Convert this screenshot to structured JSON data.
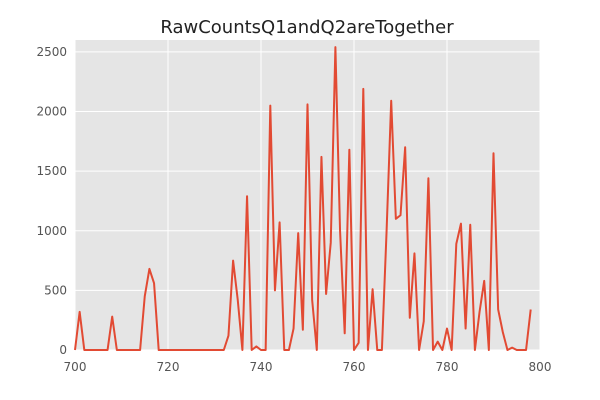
{
  "chart_data": {
    "type": "line",
    "title": "RawCountsQ1andQ2areTogether",
    "xlabel": "",
    "ylabel": "",
    "xlim": [
      700,
      800
    ],
    "ylim": [
      0,
      2600
    ],
    "x_ticks": [
      "700",
      "720",
      "740",
      "760",
      "780",
      "800"
    ],
    "y_ticks": [
      "0",
      "500",
      "1000",
      "1500",
      "2000",
      "2500"
    ],
    "grid": true,
    "colors": {
      "line": "#e24a33",
      "background": "#e5e5e5",
      "grid": "#ffffff"
    },
    "series": [
      {
        "x": [
          700,
          701,
          702,
          703,
          704,
          705,
          706,
          707,
          708,
          709,
          710,
          711,
          712,
          713,
          714,
          715,
          716,
          717,
          718,
          719,
          720,
          721,
          722,
          723,
          724,
          725,
          726,
          727,
          728,
          729,
          730,
          731,
          732,
          733,
          734,
          735,
          736,
          737,
          738,
          739,
          740,
          741,
          742,
          743,
          744,
          745,
          746,
          747,
          748,
          749,
          750,
          751,
          752,
          753,
          754,
          755,
          756,
          757,
          758,
          759,
          760,
          761,
          762,
          763,
          764,
          765,
          766,
          767,
          768,
          769,
          770,
          771,
          772,
          773,
          774,
          775,
          776,
          777,
          778,
          779,
          780,
          781,
          782,
          783,
          784,
          785,
          786,
          787,
          788,
          789,
          790,
          791,
          792,
          793,
          794,
          795,
          796,
          797,
          798
        ],
        "y": [
          0,
          320,
          0,
          0,
          0,
          0,
          0,
          0,
          280,
          0,
          0,
          0,
          0,
          0,
          0,
          450,
          680,
          560,
          0,
          0,
          0,
          0,
          0,
          0,
          0,
          0,
          0,
          0,
          0,
          0,
          0,
          0,
          0,
          120,
          750,
          420,
          0,
          1290,
          0,
          30,
          0,
          0,
          2050,
          500,
          1070,
          0,
          0,
          180,
          980,
          170,
          2060,
          420,
          0,
          1620,
          470,
          900,
          2540,
          1000,
          140,
          1680,
          0,
          60,
          2190,
          0,
          510,
          0,
          0,
          990,
          2090,
          1100,
          1130,
          1700,
          270,
          810,
          0,
          240,
          1440,
          0,
          70,
          0,
          180,
          0,
          890,
          1060,
          180,
          1050,
          0,
          320,
          580,
          0,
          1650,
          340,
          150,
          0,
          20,
          0,
          0,
          0,
          340
        ]
      }
    ]
  }
}
